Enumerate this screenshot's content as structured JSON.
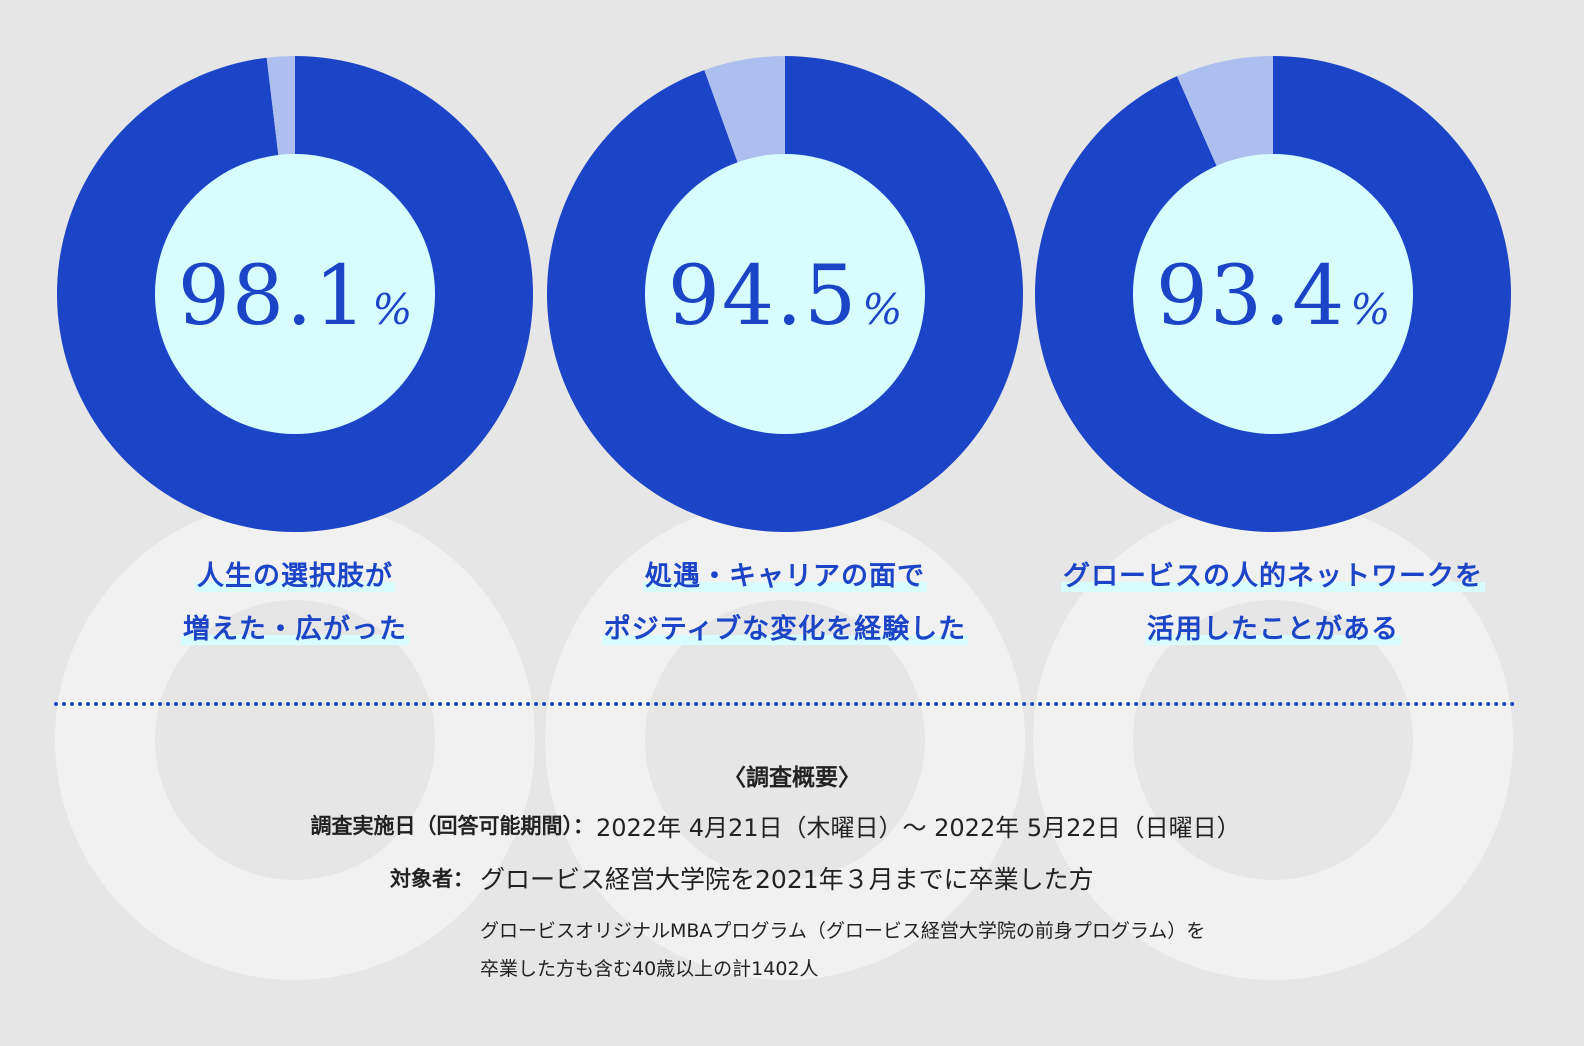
{
  "chart_data": [
    {
      "type": "pie",
      "value_label": "98.1",
      "unit": "%",
      "values": [
        98.1,
        1.9
      ],
      "colors": [
        "#1b45c6",
        "#adbfee"
      ],
      "center_color": "#d8fdff",
      "label_lines": [
        "人生の選択肢が",
        "増えた・広がった"
      ]
    },
    {
      "type": "pie",
      "value_label": "94.5",
      "unit": "%",
      "values": [
        94.5,
        5.5
      ],
      "colors": [
        "#1b45c6",
        "#adbfee"
      ],
      "center_color": "#d8fdff",
      "label_lines": [
        "処遇・キャリアの面で",
        "ポジティブな変化を経験した"
      ]
    },
    {
      "type": "pie",
      "value_label": "93.4",
      "unit": "%",
      "values": [
        93.4,
        6.6
      ],
      "colors": [
        "#1b45c6",
        "#adbfee"
      ],
      "center_color": "#d8fdff",
      "label_lines": [
        "グロービスの人的ネットワークを",
        "活用したことがある"
      ]
    }
  ],
  "summary": {
    "title": "〈調査概要〉",
    "period_label": "調査実施日（回答可能期間）：",
    "period_value": "2022年 4月21日（木曜日）～ 2022年 5月22日（日曜日）",
    "target_label": "対象者：",
    "target_value": "グロービス経営大学院を2021年３月までに卒業した方",
    "target_note_1": "グロービスオリジナルMBAプログラム（グロービス経営大学院の前身プログラム）を",
    "target_note_2": "卒業した方も含む40歳以上の計1402人"
  },
  "colors": {
    "background": "#e6e6e6",
    "accent": "#1b45c6",
    "remainder": "#adbfee",
    "highlight": "#d8fdff",
    "divider": "#1b45c6"
  }
}
